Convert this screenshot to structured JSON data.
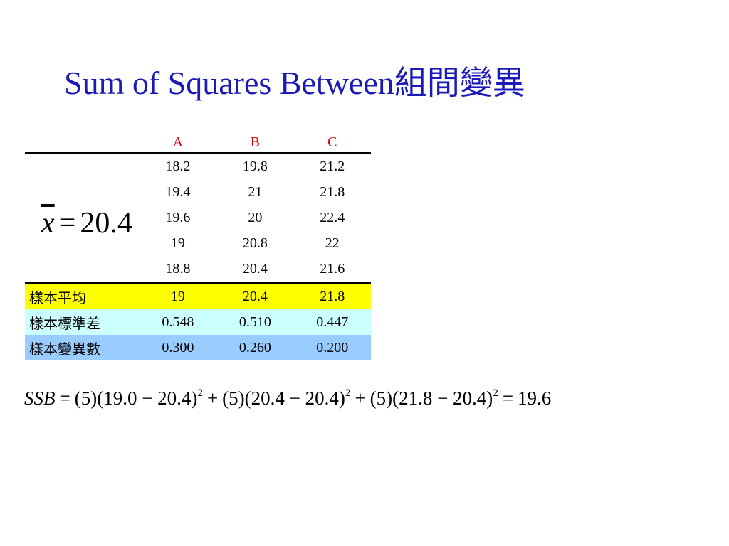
{
  "title": "Sum of Squares Between組間變異",
  "table": {
    "headers": [
      "A",
      "B",
      "C"
    ],
    "rows": [
      [
        "18.2",
        "19.8",
        "21.2"
      ],
      [
        "19.4",
        "21",
        "21.8"
      ],
      [
        "19.6",
        "20",
        "22.4"
      ],
      [
        "19",
        "20.8",
        "22"
      ],
      [
        "18.8",
        "20.4",
        "21.6"
      ]
    ],
    "summary": [
      {
        "label": "樣本平均",
        "values": [
          "19",
          "20.4",
          "21.8"
        ]
      },
      {
        "label": "樣本標準差",
        "values": [
          "0.548",
          "0.510",
          "0.447"
        ]
      },
      {
        "label": "樣本變異數",
        "values": [
          "0.300",
          "0.260",
          "0.200"
        ]
      }
    ]
  },
  "grand_mean": {
    "var": "x",
    "eq": "=",
    "value": "20.4"
  },
  "ssb": {
    "lhs": "SSB",
    "eq": "=",
    "plus": "+",
    "terms": [
      {
        "base": "(5)(19.0 − 20.4)",
        "power": "2"
      },
      {
        "base": "(5)(20.4 − 20.4)",
        "power": "2"
      },
      {
        "base": "(5)(21.8 − 20.4)",
        "power": "2"
      }
    ],
    "result": "19.6"
  }
}
